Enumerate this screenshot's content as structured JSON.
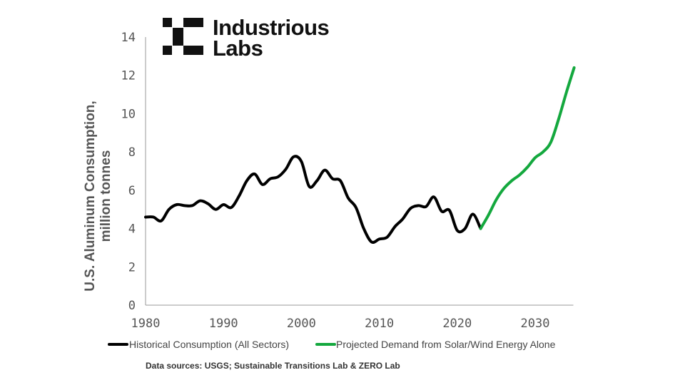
{
  "brand": {
    "name_line1": "Industrious",
    "name_line2": "Labs"
  },
  "source_note": "Data sources: USGS; Sustainable Transitions Lab & ZERO Lab",
  "colors": {
    "historical": "#000000",
    "projected": "#14a83e",
    "axis": "#9a9a9a",
    "text": "#555555"
  },
  "chart_data": {
    "type": "line",
    "title": "",
    "xlabel": "",
    "ylabel": [
      "U.S. Aluminum Consumption,",
      "million tonnes"
    ],
    "xlim": [
      1980,
      2036
    ],
    "ylim": [
      0,
      14
    ],
    "x_ticks": [
      1980,
      1990,
      2000,
      2010,
      2020,
      2030
    ],
    "y_ticks": [
      0,
      2,
      4,
      6,
      8,
      10,
      12,
      14
    ],
    "grid": false,
    "legend_position": "bottom",
    "series": [
      {
        "name": "Historical Consumption (All Sectors)",
        "color": "#000000",
        "x": [
          1980,
          1981,
          1982,
          1983,
          1984,
          1985,
          1986,
          1987,
          1988,
          1989,
          1990,
          1991,
          1992,
          1993,
          1994,
          1995,
          1996,
          1997,
          1998,
          1999,
          2000,
          2001,
          2002,
          2003,
          2004,
          2005,
          2006,
          2007,
          2008,
          2009,
          2010,
          2011,
          2012,
          2013,
          2014,
          2015,
          2016,
          2017,
          2018,
          2019,
          2020,
          2021,
          2022,
          2023
        ],
        "y": [
          4.6,
          4.6,
          4.4,
          5.0,
          5.25,
          5.2,
          5.2,
          5.45,
          5.3,
          5.0,
          5.25,
          5.1,
          5.7,
          6.5,
          6.85,
          6.3,
          6.6,
          6.7,
          7.1,
          7.75,
          7.5,
          6.2,
          6.5,
          7.05,
          6.6,
          6.5,
          5.6,
          5.1,
          4.0,
          3.3,
          3.45,
          3.55,
          4.1,
          4.5,
          5.05,
          5.2,
          5.15,
          5.65,
          4.9,
          4.95,
          3.9,
          4.0,
          4.75,
          4.0
        ]
      },
      {
        "name": "Projected Demand from Solar/Wind Energy Alone",
        "color": "#14a83e",
        "x": [
          2023,
          2024,
          2025,
          2026,
          2027,
          2028,
          2029,
          2030,
          2031,
          2032,
          2033,
          2034,
          2035
        ],
        "y": [
          4.0,
          4.7,
          5.5,
          6.1,
          6.5,
          6.8,
          7.2,
          7.7,
          8.0,
          8.5,
          9.7,
          11.1,
          12.4
        ]
      }
    ]
  }
}
